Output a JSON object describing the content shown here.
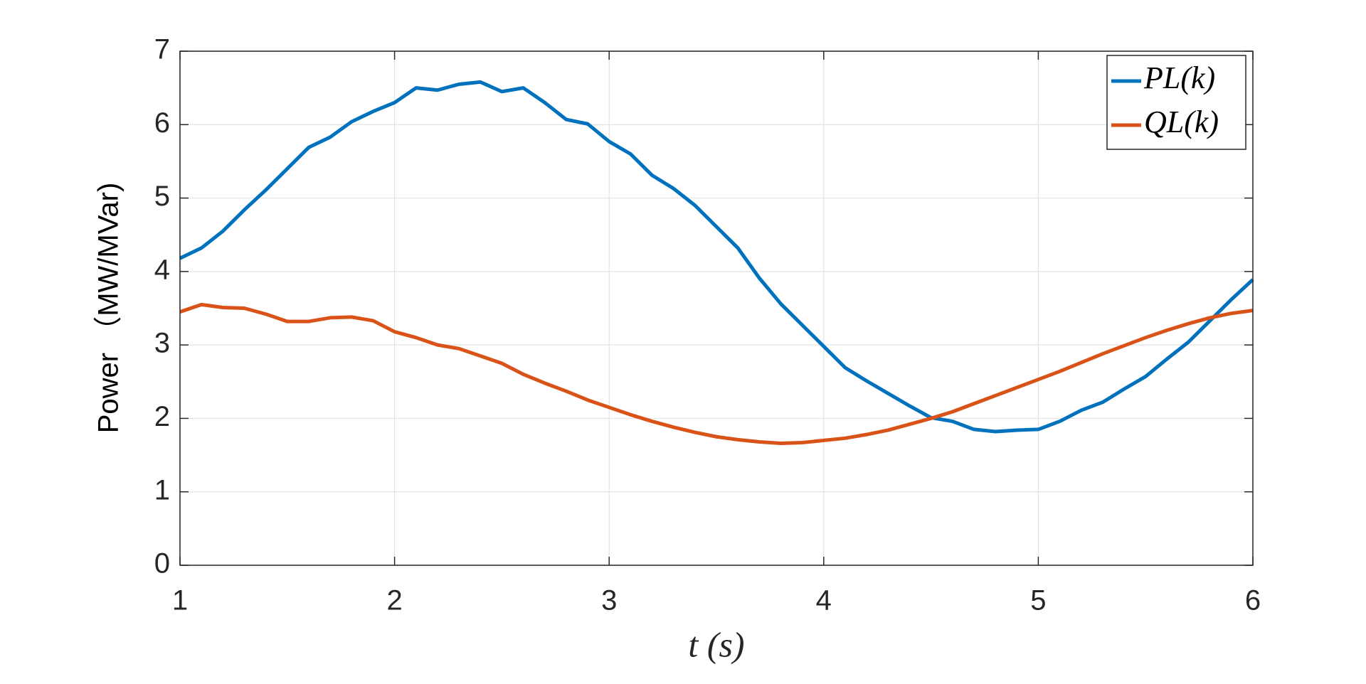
{
  "chart_data": {
    "type": "line",
    "x_label": "t (s)",
    "y_label": "Power （MW/MVar)",
    "x": [
      1.0,
      1.1,
      1.2,
      1.3,
      1.4,
      1.5,
      1.6,
      1.7,
      1.8,
      1.9,
      2.0,
      2.1,
      2.2,
      2.3,
      2.4,
      2.5,
      2.6,
      2.7,
      2.8,
      2.9,
      3.0,
      3.1,
      3.2,
      3.3,
      3.4,
      3.5,
      3.6,
      3.7,
      3.8,
      3.9,
      4.0,
      4.1,
      4.2,
      4.3,
      4.4,
      4.5,
      4.6,
      4.7,
      4.8,
      4.9,
      5.0,
      5.1,
      5.2,
      5.3,
      5.4,
      5.5,
      5.6,
      5.7,
      5.8,
      5.9,
      6.0
    ],
    "series": [
      {
        "name": "PL(k)",
        "color": "#0072bd",
        "values": [
          4.18,
          4.32,
          4.55,
          4.84,
          5.11,
          5.4,
          5.69,
          5.83,
          6.04,
          6.18,
          6.3,
          6.5,
          6.47,
          6.55,
          6.58,
          6.45,
          6.5,
          6.3,
          6.07,
          6.01,
          5.77,
          5.6,
          5.31,
          5.13,
          4.9,
          4.61,
          4.32,
          3.91,
          3.56,
          3.27,
          2.98,
          2.69,
          2.51,
          2.34,
          2.17,
          2.01,
          1.96,
          1.85,
          1.82,
          1.84,
          1.85,
          1.96,
          2.11,
          2.22,
          2.4,
          2.57,
          2.81,
          3.04,
          3.33,
          3.62,
          3.89
        ]
      },
      {
        "name": "QL(k)",
        "color": "#d95319",
        "values": [
          3.45,
          3.55,
          3.51,
          3.5,
          3.42,
          3.32,
          3.32,
          3.37,
          3.38,
          3.33,
          3.18,
          3.1,
          3.0,
          2.95,
          2.85,
          2.75,
          2.6,
          2.48,
          2.37,
          2.25,
          2.15,
          2.05,
          1.96,
          1.88,
          1.81,
          1.75,
          1.71,
          1.68,
          1.66,
          1.67,
          1.7,
          1.73,
          1.78,
          1.84,
          1.92,
          2.0,
          2.09,
          2.2,
          2.31,
          2.42,
          2.53,
          2.64,
          2.76,
          2.88,
          2.99,
          3.1,
          3.2,
          3.29,
          3.37,
          3.43,
          3.47
        ]
      }
    ],
    "xlim": [
      1,
      6
    ],
    "xticks": [
      1,
      2,
      3,
      4,
      5,
      6
    ],
    "ylim": [
      0,
      7
    ],
    "yticks": [
      0,
      1,
      2,
      3,
      4,
      5,
      6,
      7
    ],
    "grid": true,
    "legend": "top-right"
  }
}
